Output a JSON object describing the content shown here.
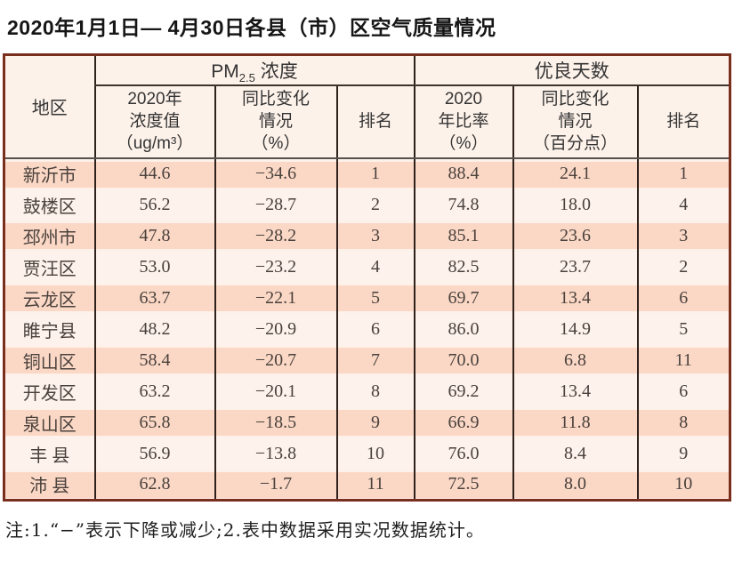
{
  "title": "2020年1月1日— 4月30日各县（市）区空气质量情况",
  "table": {
    "header": {
      "region": "地区",
      "pm25_prefix": "PM",
      "pm25_sub": "2.5",
      "pm25_suffix": " 浓度",
      "good_days_group": "优良天数",
      "sub_pm25_value": "2020年\n浓度值\n（ug/m³）",
      "sub_pm25_change": "同比变化\n情况\n（%）",
      "sub_pm25_rank": "排名",
      "sub_good_rate": "2020\n年比率\n（%）",
      "sub_good_change": "同比变化\n情况\n（百分点）",
      "sub_good_rank": "排名"
    },
    "rows": [
      {
        "region": "新沂市",
        "pm25_value": "44.6",
        "pm25_change": "−34.6",
        "pm25_rank": "1",
        "good_rate": "88.4",
        "good_change": "24.1",
        "good_rank": "1"
      },
      {
        "region": "鼓楼区",
        "pm25_value": "56.2",
        "pm25_change": "−28.7",
        "pm25_rank": "2",
        "good_rate": "74.8",
        "good_change": "18.0",
        "good_rank": "4"
      },
      {
        "region": "邳州市",
        "pm25_value": "47.8",
        "pm25_change": "−28.2",
        "pm25_rank": "3",
        "good_rate": "85.1",
        "good_change": "23.6",
        "good_rank": "3"
      },
      {
        "region": "贾汪区",
        "pm25_value": "53.0",
        "pm25_change": "−23.2",
        "pm25_rank": "4",
        "good_rate": "82.5",
        "good_change": "23.7",
        "good_rank": "2"
      },
      {
        "region": "云龙区",
        "pm25_value": "63.7",
        "pm25_change": "−22.1",
        "pm25_rank": "5",
        "good_rate": "69.7",
        "good_change": "13.4",
        "good_rank": "6"
      },
      {
        "region": "睢宁县",
        "pm25_value": "48.2",
        "pm25_change": "−20.9",
        "pm25_rank": "6",
        "good_rate": "86.0",
        "good_change": "14.9",
        "good_rank": "5"
      },
      {
        "region": "铜山区",
        "pm25_value": "58.4",
        "pm25_change": "−20.7",
        "pm25_rank": "7",
        "good_rate": "70.0",
        "good_change": "6.8",
        "good_rank": "11"
      },
      {
        "region": "开发区",
        "pm25_value": "63.2",
        "pm25_change": "−20.1",
        "pm25_rank": "8",
        "good_rate": "69.2",
        "good_change": "13.4",
        "good_rank": "6"
      },
      {
        "region": "泉山区",
        "pm25_value": "65.8",
        "pm25_change": "−18.5",
        "pm25_rank": "9",
        "good_rate": "66.9",
        "good_change": "11.8",
        "good_rank": "8"
      },
      {
        "region": "丰 县",
        "pm25_value": "56.9",
        "pm25_change": "−13.8",
        "pm25_rank": "10",
        "good_rate": "76.0",
        "good_change": "8.4",
        "good_rank": "9"
      },
      {
        "region": "沛 县",
        "pm25_value": "62.8",
        "pm25_change": "−1.7",
        "pm25_rank": "11",
        "good_rate": "72.5",
        "good_change": "8.0",
        "good_rank": "10"
      }
    ]
  },
  "note": "注:1.“−”表示下降或减少;2.表中数据采用实况数据统计。",
  "colors": {
    "row_pink": "#fbd8c6",
    "row_light": "#fdf3ec",
    "header_bg": "#fdf2ea",
    "border_outer": "#7a2e1e",
    "border_inner": "#2f211b"
  }
}
